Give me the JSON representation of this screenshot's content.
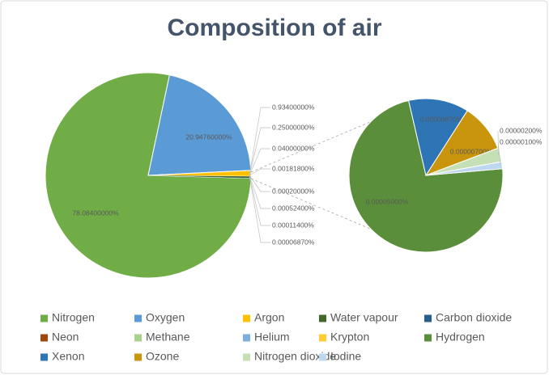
{
  "chart_data": {
    "type": "pie-of-pie",
    "title": "Composition of air",
    "categories": [
      "Nitrogen",
      "Oxygen",
      "Argon",
      "Water vapour",
      "Carbon dioxide",
      "Neon",
      "Methane",
      "Helium",
      "Krypton",
      "Hydrogen",
      "Xenon",
      "Ozone",
      "Nitrogen dioxide",
      "Iodine"
    ],
    "values": [
      78.084,
      20.9476,
      0.934,
      0.25,
      0.04,
      0.001818,
      0.0002,
      0.000524,
      0.000114,
      5e-05,
      8.7e-06,
      7e-06,
      2e-06,
      1e-06
    ],
    "value_labels": [
      "78.08400000%",
      "20.94760000%",
      "0.93400000%",
      "0.25000000%",
      "0.04000000%",
      "0.00181800%",
      "0.00020000%",
      "0.00052400%",
      "0.00011400%",
      "0.00005000%",
      "0.00000870%",
      "0.00000700%",
      "0.00000200%",
      "0.00000100%"
    ],
    "colors": [
      "#70ad47",
      "#5b9bd5",
      "#ffc000",
      "#43682b",
      "#255e91",
      "#9e480e",
      "#a9d18e",
      "#7cafdd",
      "#ffcd33",
      "#5b8e3a",
      "#2e75b6",
      "#c9950c",
      "#c5e0b4",
      "#bdd7ee"
    ],
    "secondary_start": 9,
    "other_value": 6.87e-05,
    "other_label": "0.00006870%",
    "legend": "bottom"
  }
}
